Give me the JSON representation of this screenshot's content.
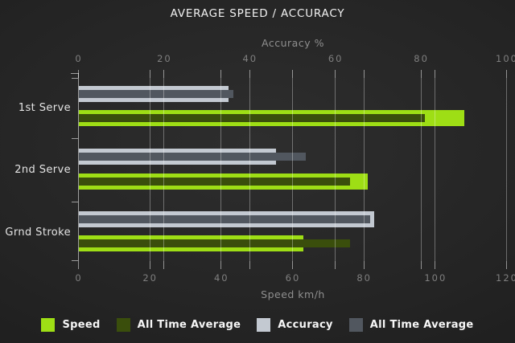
{
  "chart_data": {
    "type": "bar",
    "orientation": "horizontal",
    "title": "AVERAGE SPEED / ACCURACY",
    "categories": [
      "1st Serve",
      "2nd Serve",
      "Grnd Stroke"
    ],
    "axes": {
      "top": {
        "label": "Accuracy %",
        "min": 0,
        "max": 100,
        "ticks": [
          0,
          20,
          40,
          60,
          80,
          100
        ]
      },
      "bottom": {
        "label": "Speed km/h",
        "min": 0,
        "max": 120,
        "ticks": [
          0,
          20,
          40,
          60,
          80,
          100,
          120
        ]
      }
    },
    "series": [
      {
        "name": "Speed",
        "axis": "bottom",
        "role": "outer",
        "color": "#9ede15",
        "values": [
          108,
          81,
          63
        ]
      },
      {
        "name": "All Time Average",
        "axis": "bottom",
        "role": "inner",
        "color": "#3a4e0c",
        "values": [
          97,
          76,
          76
        ]
      },
      {
        "name": "Accuracy",
        "axis": "top",
        "role": "outer",
        "color": "#c3c9d1",
        "values": [
          35,
          46,
          69
        ]
      },
      {
        "name": "All Time Average",
        "axis": "top",
        "role": "inner",
        "color": "#51575f",
        "values": [
          36,
          53,
          68
        ]
      }
    ],
    "legend_position": "bottom",
    "grid": true,
    "colors": {
      "background": "#242424",
      "gridline": "rgba(255,255,255,0.33)",
      "title_text": "#f1f1f1",
      "axis_text": "#8f8f8f",
      "tick_text": "#7f7f7f",
      "category_text": "#e4e4e4",
      "legend_text": "#f6f6f6"
    }
  }
}
